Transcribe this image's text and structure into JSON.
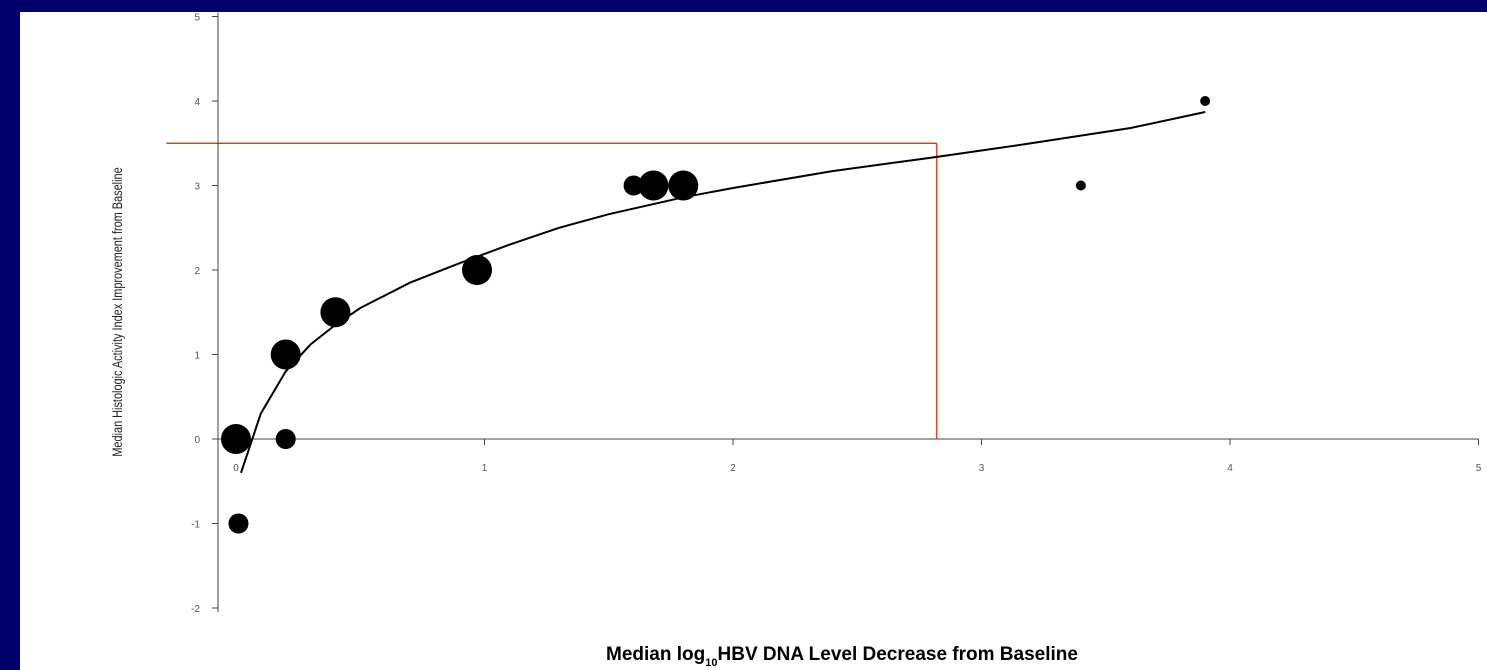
{
  "colors": {
    "background": "#00006b",
    "panel": "#ffffff",
    "markers": "#000000",
    "reference_lines": "#e0401a"
  },
  "chart_data": {
    "type": "scatter",
    "title": "",
    "ylabel": "Median Histologic Activity Index Improvement from Baseline",
    "xlabel": {
      "pre": "Median log",
      "sub": "10",
      "post": "HBV DNA Level Decrease from Baseline"
    },
    "xlim": [
      0,
      5
    ],
    "ylim": [
      -2,
      5
    ],
    "x_ticks": [
      {
        "value": 0,
        "label": "0"
      },
      {
        "value": 1,
        "label": "1"
      },
      {
        "value": 2,
        "label": "2"
      },
      {
        "value": 3,
        "label": "3"
      },
      {
        "value": 4,
        "label": "4"
      },
      {
        "value": 5,
        "label": "5"
      }
    ],
    "y_ticks": [
      {
        "value": 5,
        "label": "5"
      },
      {
        "value": 4,
        "label": "4"
      },
      {
        "value": 3,
        "label": "3"
      },
      {
        "value": 2,
        "label": "2"
      },
      {
        "value": 1,
        "label": "1"
      },
      {
        "value": 0,
        "label": "0"
      },
      {
        "value": -1,
        "label": "-1"
      },
      {
        "value": -2,
        "label": "-2"
      }
    ],
    "grid": false,
    "legend": "none",
    "points": [
      {
        "x": 0.0,
        "y": 0.0,
        "size": "large"
      },
      {
        "x": 0.01,
        "y": -1.0,
        "size": "medium"
      },
      {
        "x": 0.2,
        "y": 1.0,
        "size": "large"
      },
      {
        "x": 0.2,
        "y": 0.0,
        "size": "medium"
      },
      {
        "x": 0.4,
        "y": 1.5,
        "size": "large"
      },
      {
        "x": 0.97,
        "y": 2.0,
        "size": "large"
      },
      {
        "x": 1.6,
        "y": 3.0,
        "size": "medium"
      },
      {
        "x": 1.68,
        "y": 3.0,
        "size": "large"
      },
      {
        "x": 1.8,
        "y": 3.0,
        "size": "large"
      },
      {
        "x": 3.4,
        "y": 3.0,
        "size": "small"
      },
      {
        "x": 3.9,
        "y": 4.0,
        "size": "small"
      }
    ],
    "fit_curve": {
      "x": [
        0.02,
        0.1,
        0.2,
        0.3,
        0.4,
        0.5,
        0.7,
        0.9,
        1.1,
        1.3,
        1.5,
        1.8,
        2.0,
        2.4,
        2.8,
        3.2,
        3.6,
        3.9
      ],
      "y": [
        -0.4,
        0.3,
        0.8,
        1.12,
        1.35,
        1.55,
        1.85,
        2.08,
        2.3,
        2.5,
        2.66,
        2.86,
        2.97,
        3.17,
        3.33,
        3.5,
        3.68,
        3.87
      ]
    },
    "reference_lines": {
      "horizontal_y": 3.5,
      "horizontal_x_range": [
        -0.2,
        2.82
      ],
      "vertical_x": 2.82,
      "vertical_y_range": [
        0,
        3.5
      ]
    }
  }
}
